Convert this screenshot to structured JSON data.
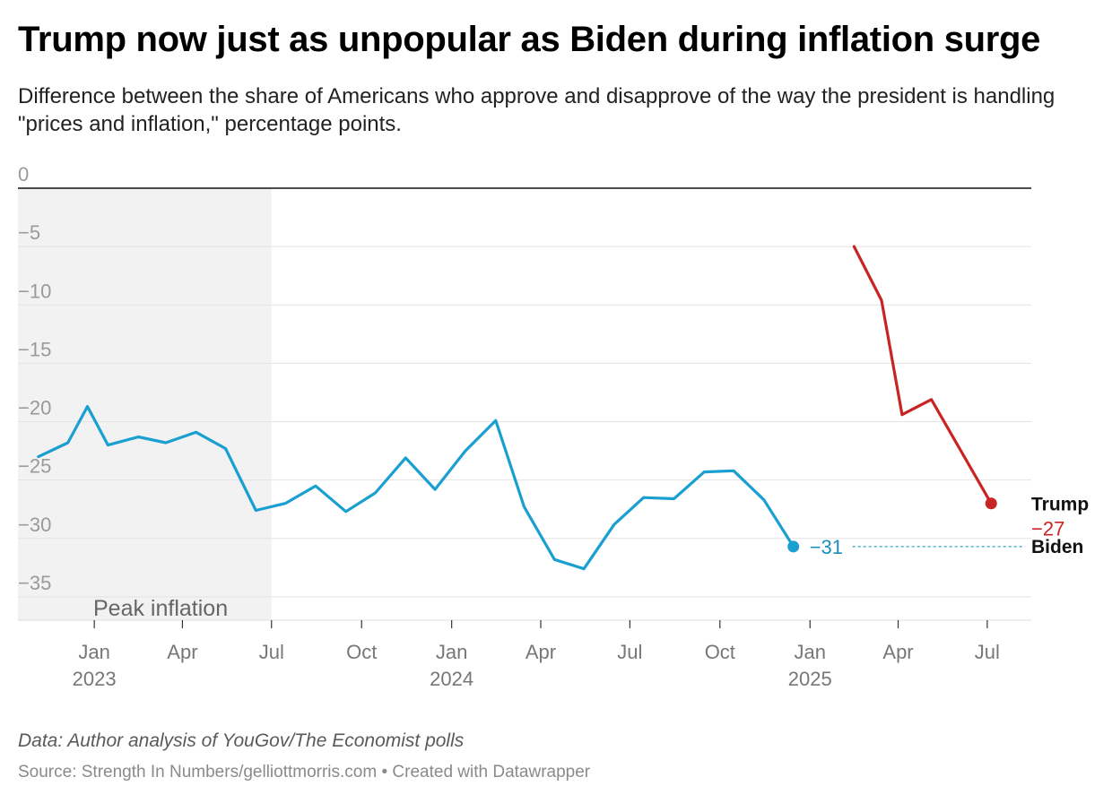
{
  "chart_data": {
    "type": "line",
    "title": "Trump now just as unpopular as Biden during inflation surge",
    "subtitle": "Difference between the share of Americans who approve and disapprove of the way the president is handling \"prices and inflation,\" percentage points.",
    "ylim": [
      -37,
      0
    ],
    "y_ticks": [
      {
        "value": 0,
        "label": "0"
      },
      {
        "value": -5,
        "label": "−5"
      },
      {
        "value": -10,
        "label": "−10"
      },
      {
        "value": -15,
        "label": "−15"
      },
      {
        "value": -20,
        "label": "−20"
      },
      {
        "value": -25,
        "label": "−25"
      },
      {
        "value": -30,
        "label": "−30"
      },
      {
        "value": -35,
        "label": "−35"
      }
    ],
    "xlim": [
      "2022-10-15",
      "2025-08-15"
    ],
    "x_ticks": [
      {
        "date": "2023-01-01",
        "label": "Jan",
        "year": "2023"
      },
      {
        "date": "2023-04-01",
        "label": "Apr",
        "year": ""
      },
      {
        "date": "2023-07-01",
        "label": "Jul",
        "year": ""
      },
      {
        "date": "2023-10-01",
        "label": "Oct",
        "year": ""
      },
      {
        "date": "2024-01-01",
        "label": "Jan",
        "year": "2024"
      },
      {
        "date": "2024-04-01",
        "label": "Apr",
        "year": ""
      },
      {
        "date": "2024-07-01",
        "label": "Jul",
        "year": ""
      },
      {
        "date": "2024-10-01",
        "label": "Oct",
        "year": ""
      },
      {
        "date": "2025-01-01",
        "label": "Jan",
        "year": "2025"
      },
      {
        "date": "2025-04-01",
        "label": "Apr",
        "year": ""
      },
      {
        "date": "2025-07-01",
        "label": "Jul",
        "year": ""
      }
    ],
    "shaded_region": {
      "start": "2022-10-15",
      "end": "2023-07-01",
      "label": "Peak inflation"
    },
    "series": [
      {
        "name": "Biden",
        "color": "#1a9fd1",
        "end_label": "−31",
        "points": [
          {
            "x": "2022-11-05",
            "y": -23.0
          },
          {
            "x": "2022-12-05",
            "y": -21.8
          },
          {
            "x": "2022-12-25",
            "y": -18.7
          },
          {
            "x": "2023-01-15",
            "y": -22.0
          },
          {
            "x": "2023-02-15",
            "y": -21.3
          },
          {
            "x": "2023-03-15",
            "y": -21.8
          },
          {
            "x": "2023-04-15",
            "y": -20.9
          },
          {
            "x": "2023-05-15",
            "y": -22.3
          },
          {
            "x": "2023-06-15",
            "y": -27.6
          },
          {
            "x": "2023-07-15",
            "y": -27.0
          },
          {
            "x": "2023-08-15",
            "y": -25.5
          },
          {
            "x": "2023-09-15",
            "y": -27.7
          },
          {
            "x": "2023-10-15",
            "y": -26.1
          },
          {
            "x": "2023-11-15",
            "y": -23.1
          },
          {
            "x": "2023-12-15",
            "y": -25.8
          },
          {
            "x": "2024-01-15",
            "y": -22.5
          },
          {
            "x": "2024-02-15",
            "y": -19.9
          },
          {
            "x": "2024-03-15",
            "y": -27.3
          },
          {
            "x": "2024-04-15",
            "y": -31.8
          },
          {
            "x": "2024-05-15",
            "y": -32.6
          },
          {
            "x": "2024-06-15",
            "y": -28.8
          },
          {
            "x": "2024-07-15",
            "y": -26.5
          },
          {
            "x": "2024-08-15",
            "y": -26.6
          },
          {
            "x": "2024-09-15",
            "y": -24.3
          },
          {
            "x": "2024-10-15",
            "y": -24.2
          },
          {
            "x": "2024-11-15",
            "y": -26.7
          },
          {
            "x": "2024-12-15",
            "y": -30.7
          }
        ]
      },
      {
        "name": "Trump",
        "color": "#c92424",
        "end_label": "−27",
        "points": [
          {
            "x": "2025-02-15",
            "y": -5.0
          },
          {
            "x": "2025-03-15",
            "y": -9.6
          },
          {
            "x": "2025-04-05",
            "y": -19.4
          },
          {
            "x": "2025-05-05",
            "y": -18.1
          },
          {
            "x": "2025-07-05",
            "y": -27.0
          }
        ]
      }
    ],
    "notes": "Data: Author analysis of YouGov/The Economist polls",
    "source": "Source: Strength In Numbers/gelliottmorris.com • Created with Datawrapper"
  }
}
